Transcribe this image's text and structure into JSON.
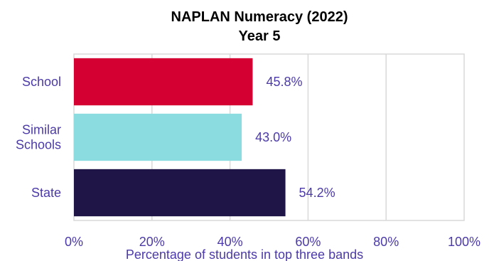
{
  "chart_data": {
    "type": "bar",
    "orientation": "horizontal",
    "title": "NAPLAN Numeracy (2022)",
    "subtitle": "Year 5",
    "xlabel": "Percentage of students in top three bands",
    "ylabel": "",
    "xlim": [
      0,
      100
    ],
    "ticks": [
      "0%",
      "20%",
      "40%",
      "60%",
      "80%",
      "100%"
    ],
    "tick_values": [
      0,
      20,
      40,
      60,
      80,
      100
    ],
    "grid": true,
    "legend": "none",
    "categories": [
      {
        "label_lines": [
          "School"
        ],
        "value": 45.8,
        "value_label": "45.8%",
        "color": "#d50032"
      },
      {
        "label_lines": [
          "Similar",
          "Schools"
        ],
        "value": 43.0,
        "value_label": "43.0%",
        "color": "#8adce0"
      },
      {
        "label_lines": [
          "State"
        ],
        "value": 54.2,
        "value_label": "54.2%",
        "color": "#201547"
      }
    ]
  }
}
